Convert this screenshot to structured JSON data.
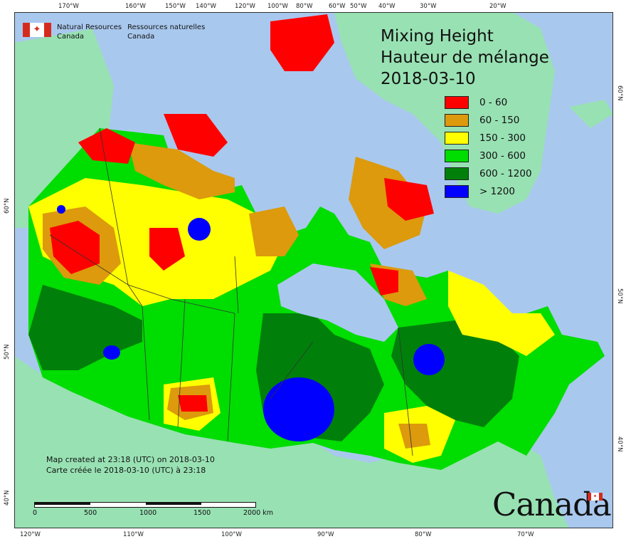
{
  "title": {
    "line1": "Mixing Height",
    "line2": "Hauteur de mélange",
    "date": "2018-03-10"
  },
  "agency": {
    "en_line1": "Natural Resources",
    "en_line2": "Canada",
    "fr_line1": "Ressources naturelles",
    "fr_line2": "Canada"
  },
  "legend": [
    {
      "label": "0 - 60",
      "color": "#ff0000"
    },
    {
      "label": "60 - 150",
      "color": "#dc9a0c"
    },
    {
      "label": "150 - 300",
      "color": "#ffff00"
    },
    {
      "label": "300 - 600",
      "color": "#00dd00"
    },
    {
      "label": "600 - 1200",
      "color": "#00800a"
    },
    {
      "label": "> 1200",
      "color": "#0000ff"
    }
  ],
  "notes": {
    "created_en": "Map created at 23:18 (UTC) on 2018-03-10",
    "created_fr": "Carte créée le 2018-03-10 (UTC) à 23:18"
  },
  "scale": {
    "labels": [
      "0",
      "500",
      "1000",
      "1500",
      "2000  km"
    ]
  },
  "wordmark": "Canada",
  "graticule": {
    "top": [
      "170°W",
      "160°W",
      "150°W",
      "140°W",
      "120°W",
      "100°W",
      "80°W",
      "60°W",
      "50°W",
      "40°W",
      "30°W",
      "20°W"
    ],
    "bottom": [
      "120°W",
      "110°W",
      "100°W",
      "90°W",
      "80°W",
      "70°W"
    ],
    "left": [
      "60°N",
      "50°N",
      "40°N"
    ],
    "right": [
      "60°N",
      "50°N",
      "40°N"
    ]
  },
  "colors": {
    "water": "#a9c8ee",
    "land_outside": "#98e1b3"
  }
}
